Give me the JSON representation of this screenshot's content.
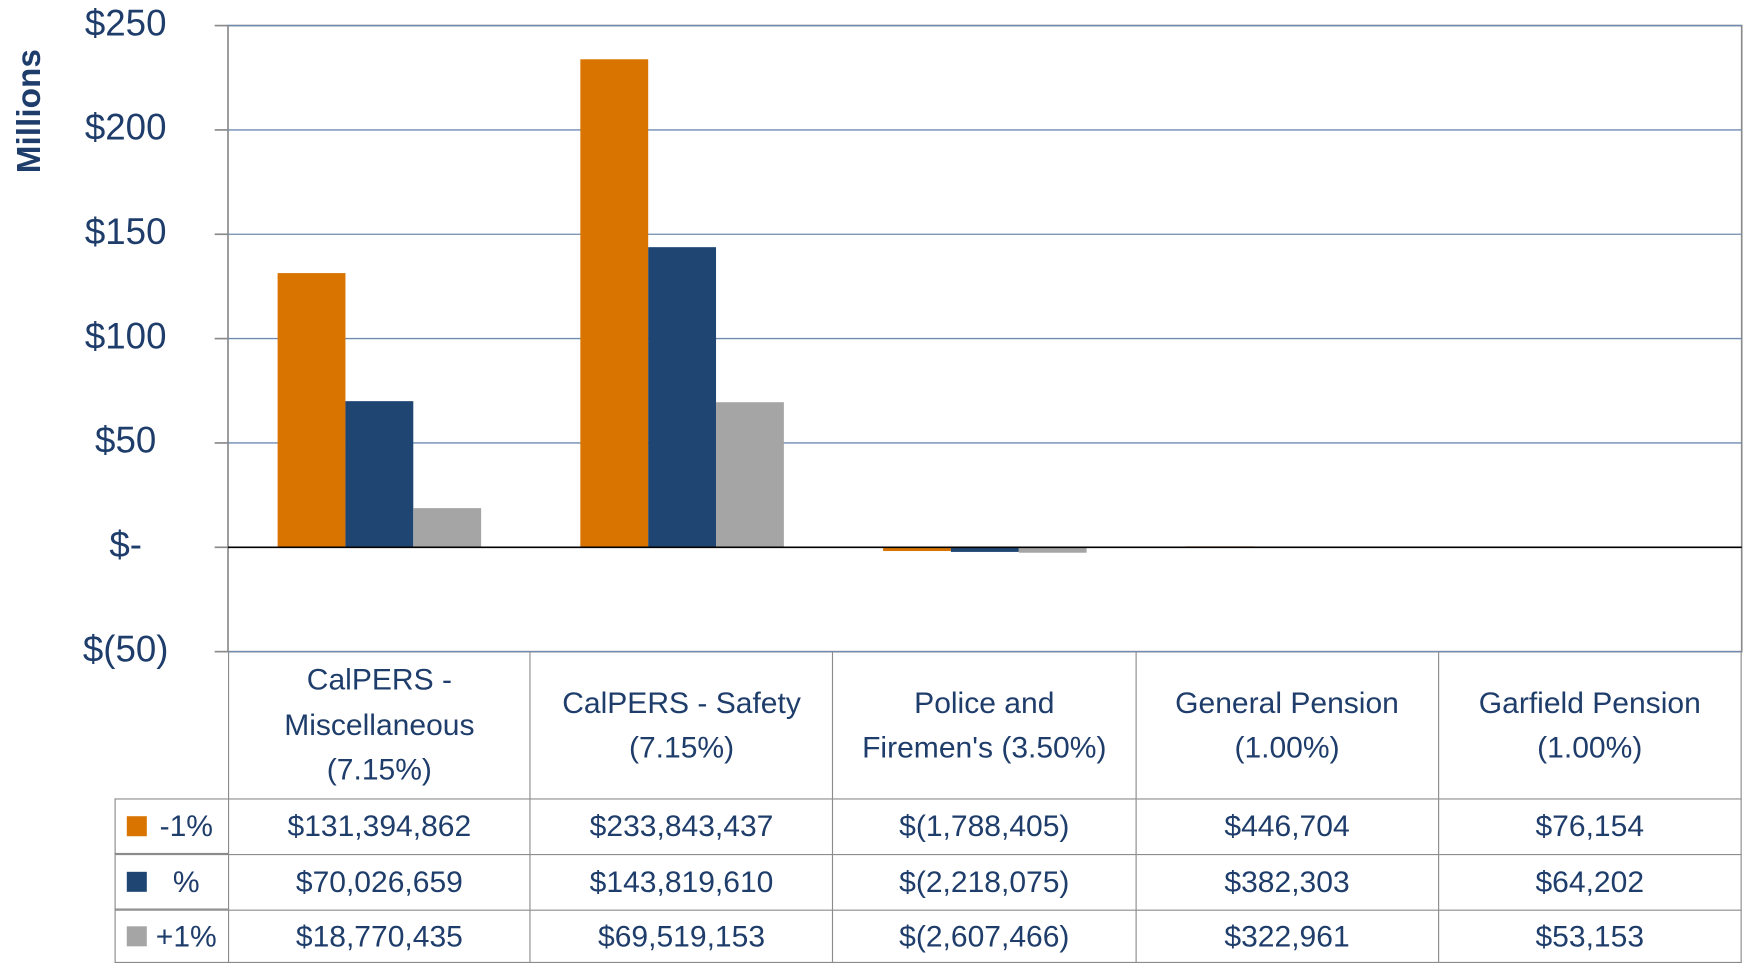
{
  "chart_data": {
    "type": "bar",
    "y_axis_label": "Millions",
    "categories": [
      "CalPERS - Miscellaneous (7.15%)",
      "CalPERS - Safety (7.15%)",
      "Police and Firemen's (3.50%)",
      "General Pension (1.00%)",
      "Garfield Pension (1.00%)"
    ],
    "series": [
      {
        "name": "-1%",
        "color": "#d97400",
        "values": [
          131.394862,
          233.843437,
          -1.788405,
          0.446704,
          0.076154
        ],
        "value_labels": [
          "$131,394,862",
          "$233,843,437",
          "$(1,788,405)",
          "$446,704",
          "$76,154"
        ]
      },
      {
        "name": "%",
        "color": "#1f4672",
        "values": [
          70.026659,
          143.81961,
          -2.218075,
          0.382303,
          0.064202
        ],
        "value_labels": [
          "$70,026,659",
          "$143,819,610",
          "$(2,218,075)",
          "$382,303",
          "$64,202"
        ]
      },
      {
        "name": "+1%",
        "color": "#a5a5a5",
        "values": [
          18.770435,
          69.519153,
          -2.607466,
          0.322961,
          0.053153
        ],
        "value_labels": [
          "$18,770,435",
          "$69,519,153",
          "$(2,607,466)",
          "$322,961",
          "$53,153"
        ]
      }
    ],
    "ylim": [
      -50,
      250
    ],
    "yticks": [
      {
        "value": -50,
        "label": "$(50)"
      },
      {
        "value": 0,
        "label": "$-"
      },
      {
        "value": 50,
        "label": "$50"
      },
      {
        "value": 100,
        "label": "$100"
      },
      {
        "value": 150,
        "label": "$150"
      },
      {
        "value": 200,
        "label": "$200"
      },
      {
        "value": 250,
        "label": "$250"
      }
    ],
    "grid": true
  }
}
